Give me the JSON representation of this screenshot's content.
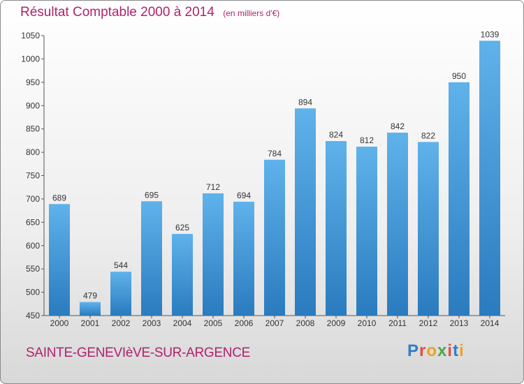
{
  "header": {
    "title": "Résultat Comptable 2000 à 2014",
    "unit": "(en milliers d'€)"
  },
  "footer": {
    "place": "SAINTE-GENEVIèVE-SUR-ARGENCE",
    "logo": "Proxiti"
  },
  "colors": {
    "bar_top": "#5fb2ea",
    "bar_bottom": "#2a7bbf",
    "title": "#b0226a"
  },
  "chart_data": {
    "type": "bar",
    "categories": [
      "2000",
      "2001",
      "2002",
      "2003",
      "2004",
      "2005",
      "2006",
      "2007",
      "2008",
      "2009",
      "2010",
      "2011",
      "2012",
      "2013",
      "2014"
    ],
    "values": [
      689,
      479,
      544,
      695,
      625,
      712,
      694,
      784,
      894,
      824,
      812,
      842,
      822,
      950,
      1039
    ],
    "title": "Résultat Comptable 2000 à 2014",
    "ylim": [
      450,
      1050
    ],
    "yticks": [
      450,
      500,
      550,
      600,
      650,
      700,
      750,
      800,
      850,
      900,
      950,
      1000,
      1050
    ],
    "grid": false,
    "data_labels": true
  }
}
